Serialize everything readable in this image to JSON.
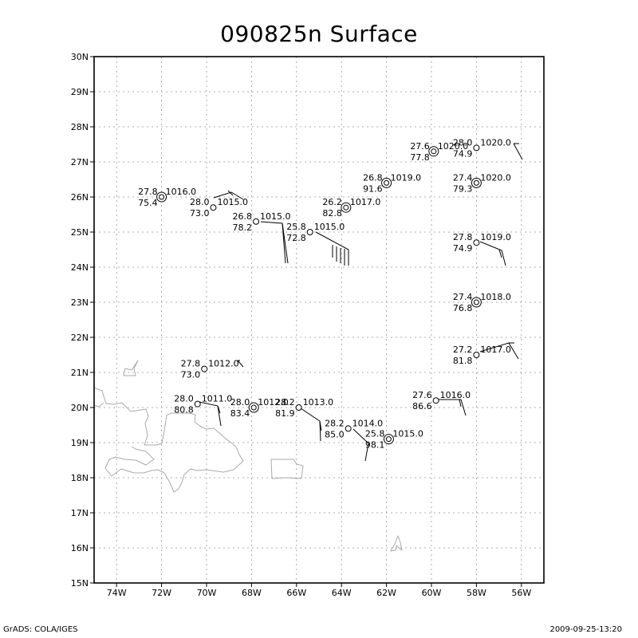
{
  "title": "090825n Surface",
  "footer_left": "GrADS: COLA/IGES",
  "footer_right": "2009-09-25-13:20",
  "map": {
    "lon_range": [
      -75,
      -55
    ],
    "lat_range": [
      15,
      30
    ],
    "lon_ticks": [
      {
        "value": -74,
        "label": "74W"
      },
      {
        "value": -72,
        "label": "72W"
      },
      {
        "value": -70,
        "label": "70W"
      },
      {
        "value": -68,
        "label": "68W"
      },
      {
        "value": -66,
        "label": "66W"
      },
      {
        "value": -64,
        "label": "64W"
      },
      {
        "value": -62,
        "label": "62W"
      },
      {
        "value": -60,
        "label": "60W"
      },
      {
        "value": -58,
        "label": "58W"
      },
      {
        "value": -56,
        "label": "56W"
      }
    ],
    "lat_ticks": [
      {
        "value": 15,
        "label": "15N"
      },
      {
        "value": 16,
        "label": "16N"
      },
      {
        "value": 17,
        "label": "17N"
      },
      {
        "value": 18,
        "label": "18N"
      },
      {
        "value": 19,
        "label": "19N"
      },
      {
        "value": 20,
        "label": "20N"
      },
      {
        "value": 21,
        "label": "21N"
      },
      {
        "value": 22,
        "label": "22N"
      },
      {
        "value": 23,
        "label": "23N"
      },
      {
        "value": 24,
        "label": "24N"
      },
      {
        "value": 25,
        "label": "25N"
      },
      {
        "value": 26,
        "label": "26N"
      },
      {
        "value": 27,
        "label": "27N"
      },
      {
        "value": 28,
        "label": "28N"
      },
      {
        "value": 29,
        "label": "29N"
      },
      {
        "value": 30,
        "label": "30N"
      }
    ],
    "grid": true
  },
  "stations": [
    {
      "lon": -72.0,
      "lat": 26.0,
      "temp": "27.8",
      "dew": "75.4",
      "pres": "1016.0",
      "calm": true
    },
    {
      "lon": -69.7,
      "lat": 25.7,
      "temp": "28.0",
      "dew": "73.0",
      "pres": "1015.0",
      "calm": false
    },
    {
      "lon": -67.8,
      "lat": 25.3,
      "temp": "26.8",
      "dew": "78.2",
      "pres": "1015.0",
      "calm": false
    },
    {
      "lon": -65.4,
      "lat": 25.0,
      "temp": "25.8",
      "dew": "72.8",
      "pres": "1015.0",
      "calm": false
    },
    {
      "lon": -63.8,
      "lat": 25.7,
      "temp": "26.2",
      "dew": "82.8",
      "pres": "1017.0",
      "calm": true
    },
    {
      "lon": -62.0,
      "lat": 26.4,
      "temp": "26.8",
      "dew": "91.6",
      "pres": "1019.0",
      "calm": true
    },
    {
      "lon": -59.9,
      "lat": 27.3,
      "temp": "27.6",
      "dew": "77.8",
      "pres": "1020.0",
      "calm": true
    },
    {
      "lon": -58.0,
      "lat": 27.4,
      "temp": "28.0",
      "dew": "74.9",
      "pres": "1020.0",
      "calm": false
    },
    {
      "lon": -58.0,
      "lat": 26.4,
      "temp": "27.4",
      "dew": "79.3",
      "pres": "1020.0",
      "calm": true
    },
    {
      "lon": -58.0,
      "lat": 24.7,
      "temp": "27.8",
      "dew": "74.9",
      "pres": "1019.0",
      "calm": false
    },
    {
      "lon": -58.0,
      "lat": 23.0,
      "temp": "27.4",
      "dew": "76.8",
      "pres": "1018.0",
      "calm": true
    },
    {
      "lon": -58.0,
      "lat": 21.5,
      "temp": "27.2",
      "dew": "81.8",
      "pres": "1017.0",
      "calm": false
    },
    {
      "lon": -70.1,
      "lat": 21.1,
      "temp": "27.8",
      "dew": "73.0",
      "pres": "1012.0",
      "calm": false
    },
    {
      "lon": -70.4,
      "lat": 20.1,
      "temp": "28.0",
      "dew": "80.8",
      "pres": "1011.0",
      "calm": false
    },
    {
      "lon": -67.9,
      "lat": 20.0,
      "temp": "28.0",
      "dew": "83.4",
      "pres": "1012.0",
      "calm": true
    },
    {
      "lon": -65.9,
      "lat": 20.0,
      "temp": "28.2",
      "dew": "81.9",
      "pres": "1013.0",
      "calm": false
    },
    {
      "lon": -63.7,
      "lat": 19.4,
      "temp": "28.2",
      "dew": "85.0",
      "pres": "1014.0",
      "calm": false
    },
    {
      "lon": -61.9,
      "lat": 19.1,
      "temp": "25.8",
      "dew": "98.1",
      "pres": "1015.0",
      "calm": true
    },
    {
      "lon": -59.8,
      "lat": 20.2,
      "temp": "27.6",
      "dew": "86.6",
      "pres": "1016.0",
      "calm": false
    }
  ]
}
